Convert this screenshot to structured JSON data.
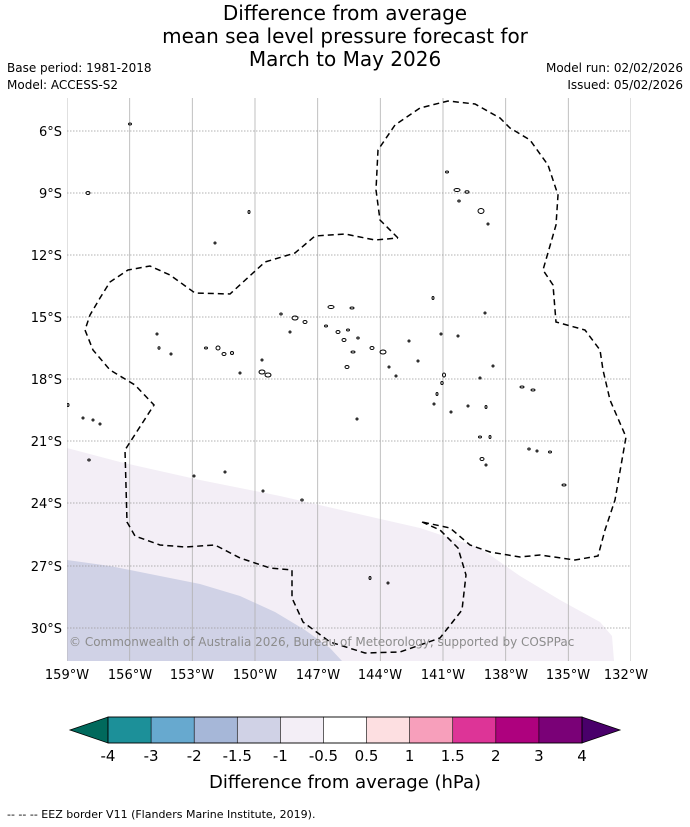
{
  "title": {
    "line1": "Difference from average",
    "line2": "mean sea level pressure forecast for",
    "line3": "March to May 2026"
  },
  "meta": {
    "base_period": "Base period: 1981-2018",
    "model": "Model: ACCESS-S2",
    "model_run": "Model run: 02/02/2026",
    "issued": "Issued: 05/02/2026"
  },
  "map": {
    "lat_ticks": [
      "6°S",
      "9°S",
      "12°S",
      "15°S",
      "18°S",
      "21°S",
      "24°S",
      "27°S",
      "30°S"
    ],
    "lon_ticks": [
      "159°W",
      "156°W",
      "153°W",
      "150°W",
      "147°W",
      "144°W",
      "141°W",
      "138°W",
      "135°W",
      "132°W"
    ],
    "copyright": "© Commonwealth of Australia 2026, Bureau of Meteorology, supported by COSPPac",
    "colors": {
      "light_negative": "#f3eef6",
      "moderate_negative": "#d0d2e6",
      "land": "#ffffff",
      "coast": "#000000"
    }
  },
  "colorbar": {
    "labels": [
      "-4",
      "-3",
      "-2",
      "-1.5",
      "-1",
      "-0.5",
      "0.5",
      "1",
      "1.5",
      "2",
      "3",
      "4"
    ],
    "colors": [
      "#1c9099",
      "#67a9cf",
      "#a6b7d8",
      "#d0d2e6",
      "#f3eef6",
      "#ffffff",
      "#fddfe1",
      "#f79fbb",
      "#dd3497",
      "#ae017e",
      "#7a0177"
    ],
    "under_color": "#00695c",
    "over_color": "#49006a",
    "title": "Difference from average (hPa)"
  },
  "footnote": "--  --  -- EEZ border V11 (Flanders Marine Institute, 2019)."
}
